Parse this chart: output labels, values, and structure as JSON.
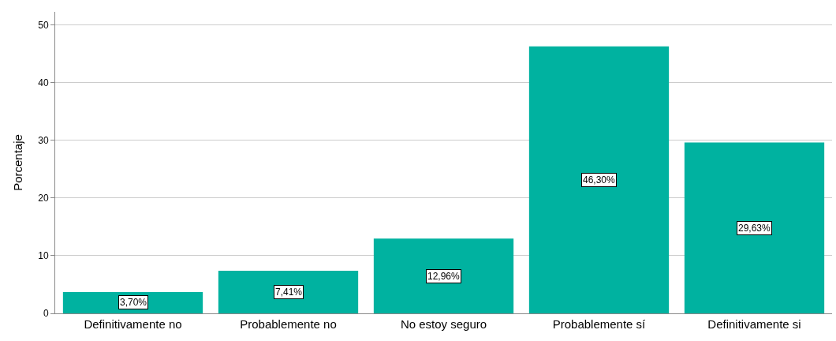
{
  "chart_data": {
    "type": "bar",
    "ylabel": "Porcentaje",
    "categories": [
      "Definitivamente no",
      "Probablemente no",
      "No estoy seguro",
      "Probablemente sí",
      "Definitivamente si"
    ],
    "values": [
      3.7,
      7.41,
      12.96,
      46.3,
      29.63
    ],
    "value_labels": [
      "3,70%",
      "7,41%",
      "12,96%",
      "46,30%",
      "29,63%"
    ],
    "color": "#00b2a0",
    "ylim": [
      0,
      52.3
    ],
    "yticks": [
      0,
      10,
      20,
      30,
      40,
      50
    ],
    "grid": "y",
    "legend": false
  }
}
